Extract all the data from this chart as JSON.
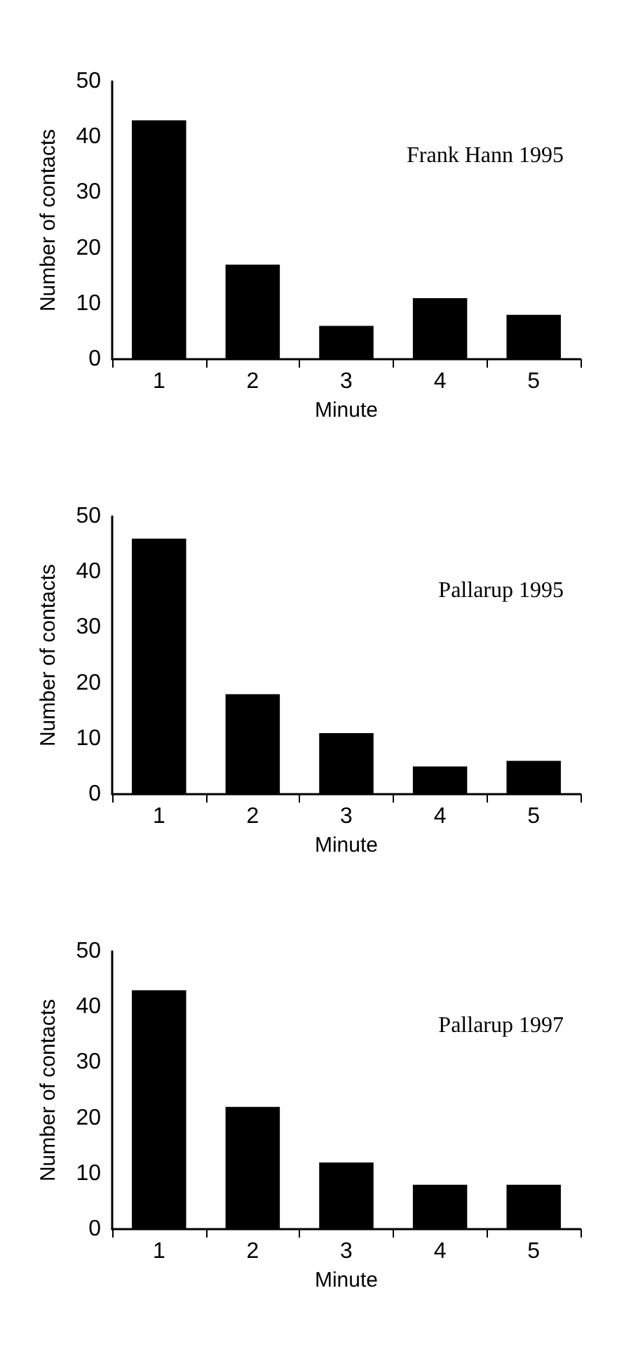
{
  "chart_data": [
    {
      "type": "bar",
      "categories": [
        "1",
        "2",
        "3",
        "4",
        "5"
      ],
      "values": [
        43,
        17,
        6,
        11,
        8
      ],
      "color": "#000000",
      "xlabel": "Minute",
      "ylabel": "Number of contacts",
      "ylim": [
        0,
        50
      ],
      "yticks": [
        0,
        10,
        20,
        30,
        40,
        50
      ],
      "grid": false,
      "annotations": [
        "Frank Hann 1995"
      ]
    },
    {
      "type": "bar",
      "categories": [
        "1",
        "2",
        "3",
        "4",
        "5"
      ],
      "values": [
        46,
        18,
        11,
        5,
        6
      ],
      "color": "#000000",
      "xlabel": "Minute",
      "ylabel": "Number of contacts",
      "ylim": [
        0,
        50
      ],
      "yticks": [
        0,
        10,
        20,
        30,
        40,
        50
      ],
      "grid": false,
      "annotations": [
        "Pallarup 1995"
      ]
    },
    {
      "type": "bar",
      "categories": [
        "1",
        "2",
        "3",
        "4",
        "5"
      ],
      "values": [
        43,
        22,
        12,
        8,
        8
      ],
      "color": "#000000",
      "xlabel": "Minute",
      "ylabel": "Number of contacts",
      "ylim": [
        0,
        50
      ],
      "yticks": [
        0,
        10,
        20,
        30,
        40,
        50
      ],
      "grid": false,
      "annotations": [
        "Pallarup 1997"
      ]
    }
  ]
}
